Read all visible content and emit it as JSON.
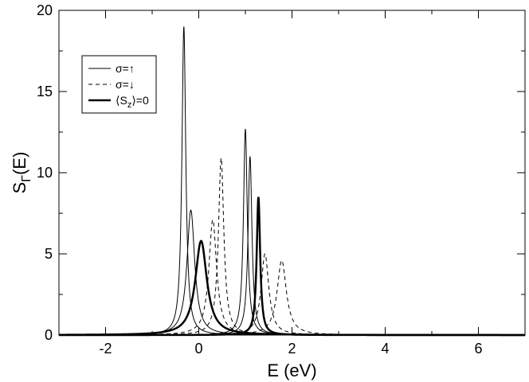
{
  "chart_data": {
    "type": "line",
    "xlabel": "E (eV)",
    "ylabel_main": "S",
    "ylabel_sub": "Γ",
    "ylabel_tail": "(E)",
    "xlim": [
      -3,
      7
    ],
    "ylim": [
      0,
      20
    ],
    "x_ticks": [
      -2,
      0,
      2,
      4,
      6
    ],
    "y_ticks": [
      0,
      5,
      10,
      15,
      20
    ],
    "x_tick_labels": [
      "-2",
      "0",
      "2",
      "4",
      "6"
    ],
    "y_tick_labels": [
      "0",
      "5",
      "10",
      "15",
      "20"
    ],
    "grid": false,
    "legend_position": "top-left",
    "legend": [
      {
        "label_main": "σ=↑",
        "label_sub": "",
        "label_tail": "",
        "style": "thin-solid"
      },
      {
        "label_main": "σ=↓",
        "label_sub": "",
        "label_tail": "",
        "style": "dashed"
      },
      {
        "label_main": "⟨S",
        "label_sub": "z",
        "label_tail": "⟩=0",
        "style": "thick-solid"
      }
    ],
    "series": [
      {
        "style": "thin-solid",
        "peaks": [
          {
            "x0": -0.32,
            "height": 19.0,
            "gamma": 0.05
          },
          {
            "x0": -0.17,
            "height": 7.7,
            "gamma": 0.1
          },
          {
            "x0": 1.0,
            "height": 12.7,
            "gamma": 0.05
          },
          {
            "x0": 1.1,
            "height": 11.0,
            "gamma": 0.05
          }
        ]
      },
      {
        "style": "dashed",
        "peaks": [
          {
            "x0": 0.3,
            "height": 7.1,
            "gamma": 0.1
          },
          {
            "x0": 0.48,
            "height": 10.9,
            "gamma": 0.07
          },
          {
            "x0": 1.42,
            "height": 5.0,
            "gamma": 0.1
          },
          {
            "x0": 1.78,
            "height": 4.6,
            "gamma": 0.12
          }
        ]
      },
      {
        "style": "thick-solid",
        "peaks": [
          {
            "x0": 0.05,
            "height": 5.8,
            "gamma": 0.15
          },
          {
            "x0": 1.28,
            "height": 8.5,
            "gamma": 0.045
          }
        ]
      }
    ]
  }
}
